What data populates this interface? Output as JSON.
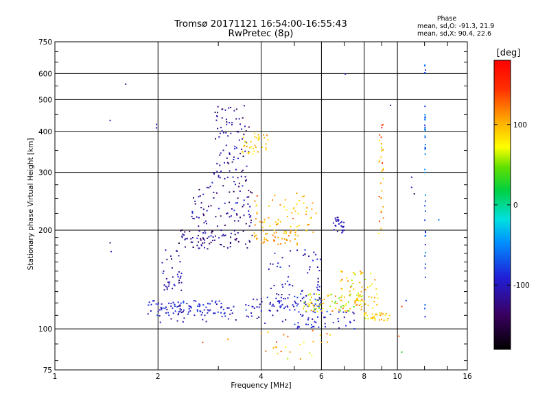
{
  "title": {
    "line1": "Tromsø 20171121 16:54:00-16:55:43",
    "line2": "RwPretec (8p)"
  },
  "phase_stats": {
    "title": "Phase",
    "o_mode": "mean, sd,O: -91.3, 21.9",
    "x_mode": "mean, sd,X:  90.4, 22.6"
  },
  "colorbar": {
    "title": "[deg]",
    "ticks": [
      {
        "label": "100",
        "value": 100
      },
      {
        "label": "0",
        "value": 0
      },
      {
        "label": "-100",
        "value": -100
      }
    ],
    "range": [
      -180,
      180
    ],
    "colormap": "rainbow"
  },
  "chart_data": {
    "type": "scatter",
    "xlabel": "Frequency [MHz]",
    "ylabel": "Stationary phase Virtual Height [km]",
    "x_scale": "log",
    "y_scale": "log",
    "xlim": [
      1,
      16
    ],
    "ylim": [
      75,
      750
    ],
    "x_ticks": [
      {
        "label": "1",
        "value": 1
      },
      {
        "label": "2",
        "value": 2
      },
      {
        "label": "4",
        "value": 4
      },
      {
        "label": "6",
        "value": 6
      },
      {
        "label": "8",
        "value": 8
      },
      {
        "label": "10",
        "value": 10
      },
      {
        "label": "16",
        "value": 16
      }
    ],
    "y_ticks": [
      {
        "label": "75",
        "value": 75
      },
      {
        "label": "100",
        "value": 100
      },
      {
        "label": "200",
        "value": 200
      },
      {
        "label": "300",
        "value": 300
      },
      {
        "label": "400",
        "value": 400
      },
      {
        "label": "500",
        "value": 500
      },
      {
        "label": "600",
        "value": 600
      },
      {
        "label": "750",
        "value": 750
      }
    ],
    "grid": true,
    "color_by": "phase (deg)",
    "clusters": [
      {
        "x": [
          1.85,
          3.3
        ],
        "y": [
          110,
          122
        ],
        "phase": [
          -85,
          -105
        ],
        "density": 1.0
      },
      {
        "x": [
          2.0,
          4.8
        ],
        "y": [
          104,
          118
        ],
        "phase": [
          -90,
          -115
        ],
        "density": 0.5
      },
      {
        "x": [
          3.6,
          6.0
        ],
        "y": [
          112,
          125
        ],
        "phase": [
          -80,
          -110
        ],
        "density": 0.7
      },
      {
        "x": [
          5.3,
          7.9
        ],
        "y": [
          113,
          128
        ],
        "phase": [
          40,
          115
        ],
        "density": 0.9
      },
      {
        "x": [
          5.0,
          7.5
        ],
        "y": [
          100,
          113
        ],
        "phase": [
          -80,
          -110
        ],
        "density": 0.5
      },
      {
        "x": [
          6.8,
          8.8
        ],
        "y": [
          115,
          150
        ],
        "phase": [
          60,
          115
        ],
        "density": 0.7
      },
      {
        "x": [
          8.0,
          9.5
        ],
        "y": [
          106,
          112
        ],
        "phase": [
          70,
          110
        ],
        "density": 0.4
      },
      {
        "x": [
          4.2,
          6.0
        ],
        "y": [
          120,
          175
        ],
        "phase": [
          -85,
          -115
        ],
        "density": 0.7
      },
      {
        "x": [
          2.3,
          3.8
        ],
        "y": [
          175,
          200
        ],
        "phase": [
          -100,
          -145
        ],
        "density": 0.9
      },
      {
        "x": [
          2.5,
          3.8
        ],
        "y": [
          205,
          280
        ],
        "phase": [
          -95,
          -140
        ],
        "density": 0.9
      },
      {
        "x": [
          2.9,
          3.7
        ],
        "y": [
          280,
          480
        ],
        "phase": [
          -100,
          -135
        ],
        "density": 1.0
      },
      {
        "x": [
          3.5,
          4.2
        ],
        "y": [
          340,
          400
        ],
        "phase": [
          80,
          115
        ],
        "density": 0.4
      },
      {
        "x": [
          3.8,
          5.8
        ],
        "y": [
          195,
          260
        ],
        "phase": [
          85,
          120
        ],
        "density": 0.7
      },
      {
        "x": [
          3.8,
          5.2
        ],
        "y": [
          180,
          200
        ],
        "phase": [
          100,
          120
        ],
        "density": 0.5
      },
      {
        "x": [
          2.05,
          2.35
        ],
        "y": [
          130,
          175
        ],
        "phase": [
          -95,
          -120
        ],
        "density": 0.4
      },
      {
        "x": [
          4.0,
          6.6
        ],
        "y": [
          80,
          100
        ],
        "phase": [
          60,
          140
        ],
        "density": 0.3
      },
      {
        "x": [
          6.5,
          7.0
        ],
        "y": [
          195,
          220
        ],
        "phase": [
          -90,
          -110
        ],
        "density": 0.3
      },
      {
        "x": [
          8.8,
          9.1
        ],
        "y": [
          190,
          480
        ],
        "phase": [
          60,
          160
        ],
        "density": 0.35
      }
    ],
    "columns": [
      {
        "x": 12.05,
        "y": [
          105,
          650
        ],
        "phase": [
          -40,
          -90
        ]
      }
    ],
    "isolated_points": [
      {
        "x": 1.45,
        "y": 432,
        "phase": -90
      },
      {
        "x": 1.45,
        "y": 183,
        "phase": -130
      },
      {
        "x": 1.46,
        "y": 172,
        "phase": -100
      },
      {
        "x": 1.61,
        "y": 557,
        "phase": -120
      },
      {
        "x": 1.98,
        "y": 420,
        "phase": -100
      },
      {
        "x": 1.98,
        "y": 410,
        "phase": -90
      },
      {
        "x": 7.05,
        "y": 598,
        "phase": -110
      },
      {
        "x": 9.55,
        "y": 480,
        "phase": -130
      },
      {
        "x": 11.0,
        "y": 290,
        "phase": -110
      },
      {
        "x": 11.0,
        "y": 270,
        "phase": -90
      },
      {
        "x": 11.2,
        "y": 258,
        "phase": -130
      },
      {
        "x": 13.2,
        "y": 215,
        "phase": -60
      },
      {
        "x": 10.6,
        "y": 122,
        "phase": -85
      },
      {
        "x": 10.3,
        "y": 117,
        "phase": 140
      },
      {
        "x": 10.3,
        "y": 85,
        "phase": 30
      },
      {
        "x": 10.1,
        "y": 95,
        "phase": 130
      },
      {
        "x": 2.7,
        "y": 91,
        "phase": 140
      },
      {
        "x": 3.2,
        "y": 93,
        "phase": 110
      }
    ]
  }
}
